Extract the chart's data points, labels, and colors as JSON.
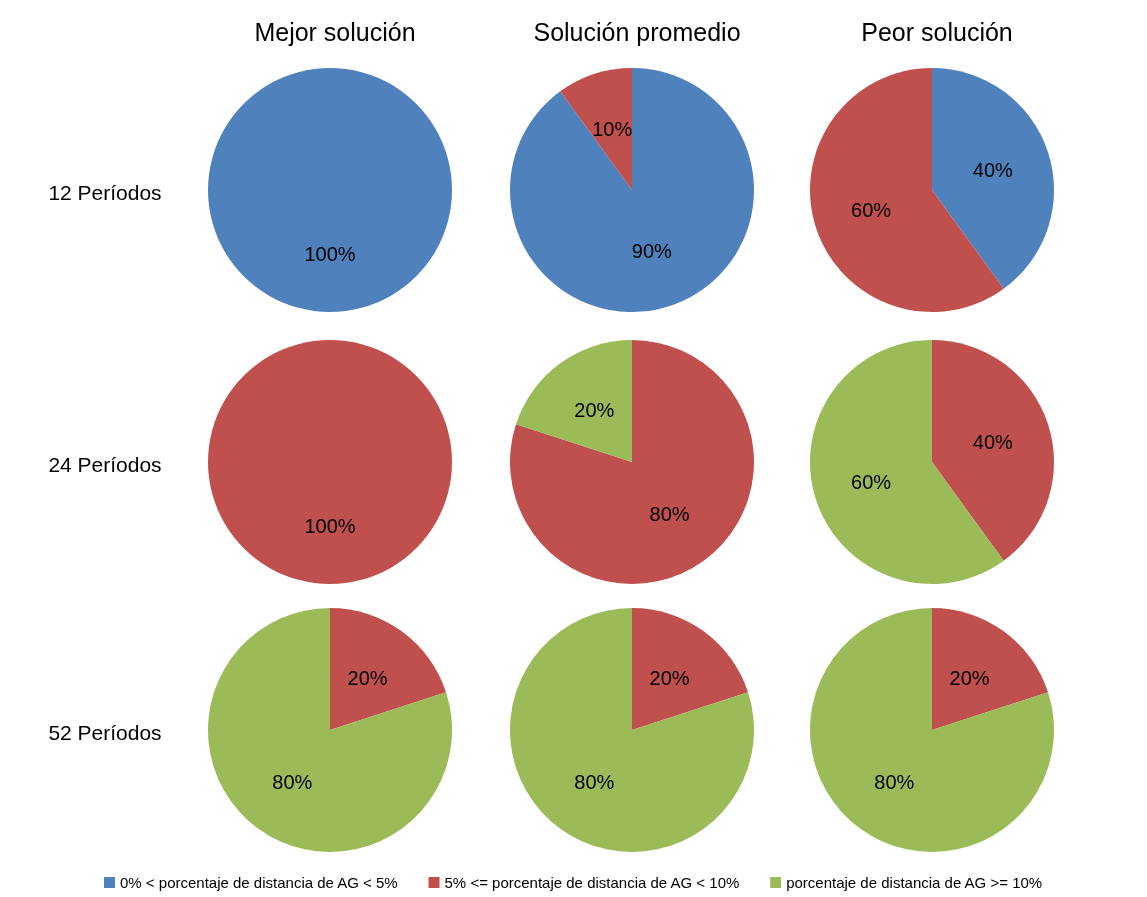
{
  "chart_data": [
    {
      "type": "pie",
      "title": "Mejor solución",
      "ylabel": "12 Períodos",
      "categories": [
        null,
        null,
        null
      ],
      "values": [
        100,
        0,
        0
      ],
      "value_labels": [
        "100%",
        null,
        null
      ],
      "colors": [
        "#4f81bd",
        "#c0504d",
        "#9bbb59"
      ]
    },
    {
      "type": "pie",
      "title": "Solución promedio",
      "categories": [
        null,
        null,
        null
      ],
      "values": [
        90,
        10,
        0
      ],
      "value_labels": [
        "90%",
        "10%",
        null
      ],
      "colors": [
        "#4f81bd",
        "#c0504d",
        "#9bbb59"
      ]
    },
    {
      "type": "pie",
      "title": "Peor solución",
      "categories": [
        null,
        null,
        null
      ],
      "values": [
        40,
        60,
        0
      ],
      "value_labels": [
        "40%",
        "60%",
        null
      ],
      "colors": [
        "#4f81bd",
        "#c0504d",
        "#9bbb59"
      ]
    },
    {
      "type": "pie",
      "ylabel": "24 Períodos",
      "categories": [
        null,
        null,
        null
      ],
      "values": [
        0,
        100,
        0
      ],
      "value_labels": [
        null,
        "100%",
        null
      ],
      "colors": [
        "#4f81bd",
        "#c0504d",
        "#9bbb59"
      ]
    },
    {
      "type": "pie",
      "categories": [
        null,
        null,
        null
      ],
      "values": [
        0,
        80,
        20
      ],
      "value_labels": [
        null,
        "80%",
        "20%"
      ],
      "colors": [
        "#4f81bd",
        "#c0504d",
        "#9bbb59"
      ]
    },
    {
      "type": "pie",
      "categories": [
        null,
        null,
        null
      ],
      "values": [
        0,
        40,
        60
      ],
      "value_labels": [
        null,
        "40%",
        "60%"
      ],
      "colors": [
        "#4f81bd",
        "#c0504d",
        "#9bbb59"
      ]
    },
    {
      "type": "pie",
      "ylabel": "52 Períodos",
      "categories": [
        null,
        null,
        null
      ],
      "values": [
        0,
        20,
        80
      ],
      "value_labels": [
        null,
        "20%",
        "80%"
      ],
      "colors": [
        "#4f81bd",
        "#c0504d",
        "#9bbb59"
      ]
    },
    {
      "type": "pie",
      "categories": [
        null,
        null,
        null
      ],
      "values": [
        0,
        20,
        80
      ],
      "value_labels": [
        null,
        "20%",
        "80%"
      ],
      "colors": [
        "#4f81bd",
        "#c0504d",
        "#9bbb59"
      ]
    },
    {
      "type": "pie",
      "categories": [
        "0% < porcentaje de distancia de AG < 5%",
        "5% <= porcentaje de distancia de AG < 10%",
        "porcentaje de distancia de AG >= 10%"
      ],
      "values": [
        0,
        20,
        80
      ],
      "value_labels": [
        null,
        "20%",
        "80%"
      ],
      "colors": [
        "#4f81bd",
        "#c0504d",
        "#9bbb59"
      ],
      "legend": "bottom"
    }
  ]
}
